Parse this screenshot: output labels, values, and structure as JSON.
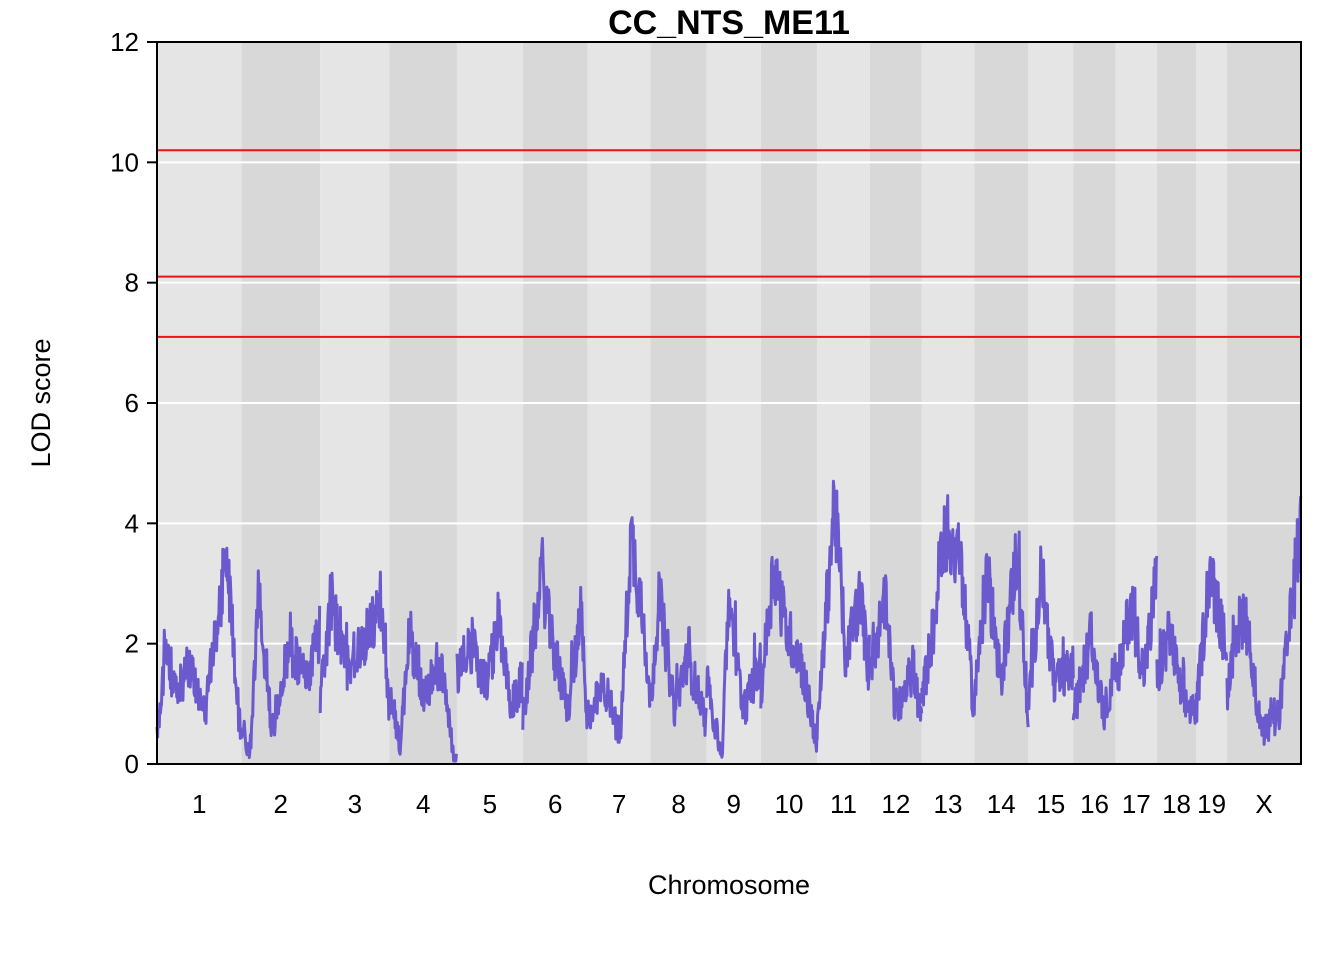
{
  "chart_data": {
    "type": "line",
    "title": "CC_NTS_ME11",
    "xlabel": "Chromosome",
    "ylabel": "LOD score",
    "ylim": [
      0,
      12
    ],
    "yticks": [
      0,
      2,
      4,
      6,
      8,
      10,
      12
    ],
    "grid": true,
    "chromosomes": [
      {
        "label": "1",
        "start": 0,
        "end": 195
      },
      {
        "label": "2",
        "start": 195,
        "end": 377
      },
      {
        "label": "3",
        "start": 377,
        "end": 537
      },
      {
        "label": "4",
        "start": 537,
        "end": 693
      },
      {
        "label": "5",
        "start": 693,
        "end": 845
      },
      {
        "label": "6",
        "start": 845,
        "end": 995
      },
      {
        "label": "7",
        "start": 995,
        "end": 1140
      },
      {
        "label": "8",
        "start": 1140,
        "end": 1270
      },
      {
        "label": "9",
        "start": 1270,
        "end": 1395
      },
      {
        "label": "10",
        "start": 1395,
        "end": 1525
      },
      {
        "label": "11",
        "start": 1525,
        "end": 1647
      },
      {
        "label": "12",
        "start": 1647,
        "end": 1767
      },
      {
        "label": "13",
        "start": 1767,
        "end": 1888
      },
      {
        "label": "14",
        "start": 1888,
        "end": 2013
      },
      {
        "label": "15",
        "start": 2013,
        "end": 2117
      },
      {
        "label": "16",
        "start": 2117,
        "end": 2215
      },
      {
        "label": "17",
        "start": 2215,
        "end": 2310
      },
      {
        "label": "18",
        "start": 2310,
        "end": 2401
      },
      {
        "label": "19",
        "start": 2401,
        "end": 2472
      },
      {
        "label": "X",
        "start": 2472,
        "end": 2643
      }
    ],
    "thresholds": [
      10.2,
      8.1,
      7.1
    ],
    "series": [
      {
        "color": "#6a5acd",
        "peaks": [
          [
            [
              0,
              0.5
            ],
            [
              20,
              1.9
            ],
            [
              45,
              1.1
            ],
            [
              75,
              1.7
            ],
            [
              110,
              0.8
            ],
            [
              160,
              3.5
            ],
            [
              190,
              0.7
            ]
          ],
          [
            [
              0,
              0.6
            ],
            [
              20,
              0.1
            ],
            [
              40,
              2.8
            ],
            [
              70,
              0.5
            ],
            [
              110,
              2.0
            ],
            [
              150,
              1.4
            ],
            [
              180,
              2.2
            ]
          ],
          [
            [
              0,
              1.1
            ],
            [
              25,
              2.7
            ],
            [
              60,
              1.6
            ],
            [
              100,
              2.0
            ],
            [
              140,
              2.7
            ],
            [
              158,
              1.0
            ]
          ],
          [
            [
              0,
              1.2
            ],
            [
              25,
              0.3
            ],
            [
              45,
              2.2
            ],
            [
              80,
              1.1
            ],
            [
              120,
              1.6
            ],
            [
              150,
              0.1
            ]
          ],
          [
            [
              0,
              1.5
            ],
            [
              30,
              2.0
            ],
            [
              70,
              1.3
            ],
            [
              95,
              2.4
            ],
            [
              125,
              0.9
            ],
            [
              150,
              1.4
            ]
          ],
          [
            [
              0,
              0.8
            ],
            [
              45,
              3.1
            ],
            [
              70,
              1.9
            ],
            [
              105,
              0.9
            ],
            [
              135,
              2.5
            ],
            [
              148,
              0.6
            ]
          ],
          [
            [
              0,
              0.8
            ],
            [
              40,
              1.3
            ],
            [
              75,
              0.4
            ],
            [
              100,
              3.8
            ],
            [
              125,
              2.6
            ],
            [
              143,
              1.2
            ]
          ],
          [
            [
              0,
              1.0
            ],
            [
              20,
              2.8
            ],
            [
              55,
              0.9
            ],
            [
              85,
              1.8
            ],
            [
              128,
              0.7
            ]
          ],
          [
            [
              0,
              1.4
            ],
            [
              35,
              0.1
            ],
            [
              50,
              2.7
            ],
            [
              85,
              0.9
            ],
            [
              123,
              1.6
            ]
          ],
          [
            [
              0,
              1.2
            ],
            [
              30,
              3.3
            ],
            [
              60,
              2.2
            ],
            [
              90,
              1.8
            ],
            [
              128,
              0.4
            ]
          ],
          [
            [
              0,
              0.5
            ],
            [
              40,
              4.4
            ],
            [
              65,
              1.8
            ],
            [
              100,
              2.8
            ],
            [
              120,
              1.5
            ]
          ],
          [
            [
              0,
              1.6
            ],
            [
              35,
              2.7
            ],
            [
              60,
              0.8
            ],
            [
              100,
              1.6
            ],
            [
              118,
              0.7
            ]
          ],
          [
            [
              0,
              1.1
            ],
            [
              30,
              2.4
            ],
            [
              50,
              4.0
            ],
            [
              90,
              3.3
            ],
            [
              119,
              1.0
            ]
          ],
          [
            [
              0,
              1.0
            ],
            [
              30,
              3.3
            ],
            [
              60,
              1.3
            ],
            [
              100,
              3.6
            ],
            [
              123,
              0.7
            ]
          ],
          [
            [
              0,
              1.0
            ],
            [
              30,
              3.2
            ],
            [
              60,
              1.3
            ],
            [
              102,
              1.6
            ]
          ],
          [
            [
              0,
              0.8
            ],
            [
              40,
              2.1
            ],
            [
              70,
              0.8
            ],
            [
              96,
              1.6
            ]
          ],
          [
            [
              0,
              1.2
            ],
            [
              35,
              2.7
            ],
            [
              65,
              1.5
            ],
            [
              93,
              3.0
            ]
          ],
          [
            [
              0,
              1.4
            ],
            [
              30,
              2.2
            ],
            [
              60,
              1.0
            ],
            [
              89,
              0.9
            ]
          ],
          [
            [
              0,
              0.9
            ],
            [
              30,
              3.2
            ],
            [
              69,
              1.9
            ]
          ],
          [
            [
              0,
              1.2
            ],
            [
              40,
              2.6
            ],
            [
              80,
              0.5
            ],
            [
              120,
              0.8
            ],
            [
              150,
              2.6
            ],
            [
              171,
              4.0
            ]
          ]
        ]
      }
    ]
  }
}
